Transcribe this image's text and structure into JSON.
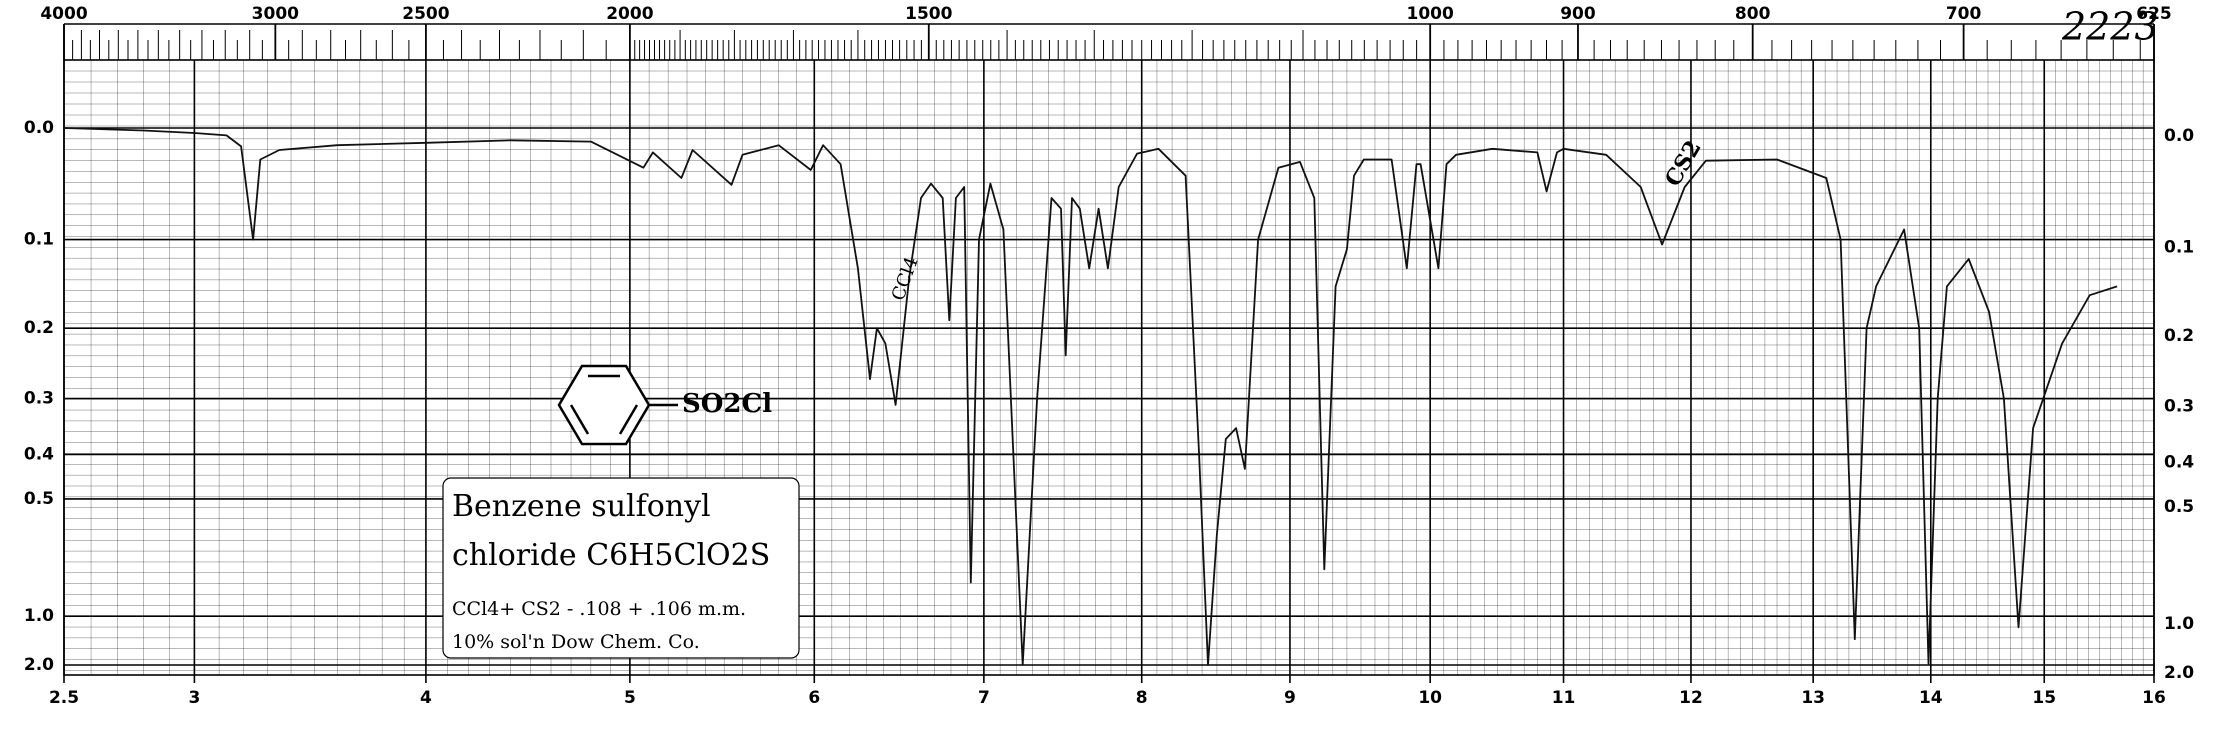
{
  "chart_data": {
    "type": "line",
    "title": "Benzene sulfonyl",
    "subtitle": "chloride C6H5ClO2S",
    "notes": [
      "CCl4+ CS2 - .108 + .106 m.m.",
      "10% sol'n    Dow Chem. Co."
    ],
    "spectrum_number": "2223",
    "structure_label": "SO2Cl",
    "handwritten": [
      "CCl4",
      "CS2"
    ],
    "xscale": "sqrt",
    "yscale": "transmittance",
    "color": "#111111",
    "grid": true,
    "xlim": [
      2.5,
      16
    ],
    "xticks": [
      2.5,
      3,
      4,
      5,
      6,
      7,
      8,
      9,
      10,
      11,
      12,
      13,
      14,
      15,
      16
    ],
    "x2ticks": [
      4000,
      3000,
      2500,
      2000,
      1500,
      1000,
      900,
      800,
      700,
      625
    ],
    "ylim": [
      0,
      2
    ],
    "yticks": [
      {
        "value": 0,
        "label": "0.0"
      },
      0.1,
      0.2,
      0.3,
      0.4,
      0.5,
      {
        "value": 1,
        "label": "1.0"
      },
      {
        "value": 2,
        "label": "2.0"
      }
    ],
    "x": [
      2.5,
      2.8,
      3.0,
      3.13,
      3.19,
      3.24,
      3.27,
      3.35,
      3.6,
      4.0,
      4.4,
      4.8,
      5.07,
      5.12,
      5.27,
      5.33,
      5.54,
      5.6,
      5.8,
      5.98,
      6.05,
      6.15,
      6.25,
      6.32,
      6.36,
      6.41,
      6.47,
      6.55,
      6.62,
      6.68,
      6.75,
      6.79,
      6.83,
      6.88,
      6.92,
      6.97,
      7.04,
      7.12,
      7.24,
      7.33,
      7.42,
      7.48,
      7.51,
      7.55,
      7.6,
      7.66,
      7.72,
      7.78,
      7.85,
      7.97,
      8.11,
      8.29,
      8.38,
      8.44,
      8.5,
      8.56,
      8.63,
      8.69,
      8.78,
      8.92,
      9.07,
      9.17,
      9.24,
      9.32,
      9.4,
      9.45,
      9.52,
      9.72,
      9.83,
      9.9,
      9.93,
      10.06,
      10.12,
      10.19,
      10.46,
      10.8,
      10.87,
      10.95,
      11.0,
      11.33,
      11.6,
      11.77,
      11.95,
      12.12,
      12.7,
      13.11,
      13.23,
      13.35,
      13.45,
      13.53,
      13.77,
      13.9,
      13.98,
      14.06,
      14.14,
      14.33,
      14.51,
      14.64,
      14.77,
      14.9,
      15.16,
      15.41,
      15.66
    ],
    "values": [
      0,
      0.002,
      0.004,
      0.006,
      0.015,
      0.1,
      0.026,
      0.018,
      0.014,
      0.012,
      0.01,
      0.011,
      0.033,
      0.02,
      0.042,
      0.018,
      0.048,
      0.022,
      0.014,
      0.035,
      0.014,
      0.03,
      0.13,
      0.27,
      0.2,
      0.22,
      0.31,
      0.14,
      0.06,
      0.047,
      0.06,
      0.19,
      0.06,
      0.05,
      0.79,
      0.1,
      0.047,
      0.09,
      2.0,
      0.3,
      0.06,
      0.07,
      0.236,
      0.06,
      0.07,
      0.13,
      0.07,
      0.13,
      0.05,
      0.021,
      0.017,
      0.04,
      0.4,
      2.0,
      0.6,
      0.37,
      0.35,
      0.43,
      0.1,
      0.033,
      0.028,
      0.06,
      0.73,
      0.15,
      0.11,
      0.04,
      0.026,
      0.026,
      0.13,
      0.03,
      0.03,
      0.13,
      0.03,
      0.022,
      0.017,
      0.02,
      0.054,
      0.02,
      0.017,
      0.022,
      0.05,
      0.105,
      0.05,
      0.027,
      0.026,
      0.042,
      0.1,
      1.24,
      0.2,
      0.15,
      0.09,
      0.2,
      1.9,
      0.3,
      0.15,
      0.12,
      0.18,
      0.3,
      1.1,
      0.35,
      0.22,
      0.16,
      0.15
    ]
  }
}
